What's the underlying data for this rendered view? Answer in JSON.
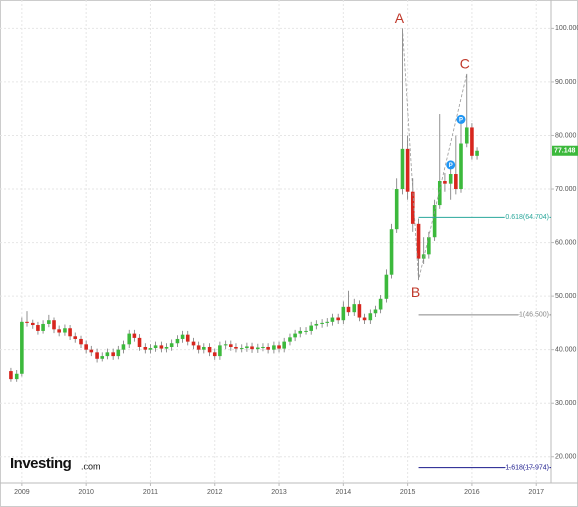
{
  "chart_data": {
    "type": "candlestick",
    "x": [
      2008.83,
      2008.92,
      2009.0,
      2009.08,
      2009.17,
      2009.25,
      2009.33,
      2009.42,
      2009.5,
      2009.58,
      2009.67,
      2009.75,
      2009.83,
      2009.92,
      2010.0,
      2010.08,
      2010.17,
      2010.25,
      2010.33,
      2010.42,
      2010.5,
      2010.58,
      2010.67,
      2010.75,
      2010.83,
      2010.92,
      2011.0,
      2011.08,
      2011.17,
      2011.25,
      2011.33,
      2011.42,
      2011.5,
      2011.58,
      2011.67,
      2011.75,
      2011.83,
      2011.92,
      2012.0,
      2012.08,
      2012.17,
      2012.25,
      2012.33,
      2012.42,
      2012.5,
      2012.58,
      2012.67,
      2012.75,
      2012.83,
      2012.92,
      2013.0,
      2013.08,
      2013.17,
      2013.25,
      2013.33,
      2013.42,
      2013.5,
      2013.58,
      2013.67,
      2013.75,
      2013.83,
      2013.92,
      2014.0,
      2014.08,
      2014.17,
      2014.25,
      2014.33,
      2014.42,
      2014.5,
      2014.58,
      2014.67,
      2014.75,
      2014.83,
      2014.92,
      2015.0,
      2015.08,
      2015.17,
      2015.25,
      2015.33,
      2015.42,
      2015.5,
      2015.58,
      2015.67,
      2015.75,
      2015.83,
      2015.92,
      2016.0,
      2016.08
    ],
    "open": [
      36.0,
      34.5,
      35.5,
      45.2,
      45.0,
      44.6,
      43.5,
      44.8,
      45.5,
      43.8,
      43.2,
      44.0,
      42.5,
      42.0,
      41.0,
      40.0,
      39.5,
      38.3,
      38.8,
      39.5,
      38.8,
      40.0,
      41.0,
      43.0,
      42.2,
      40.5,
      40.0,
      40.3,
      40.8,
      40.2,
      40.5,
      41.2,
      42.0,
      42.8,
      41.5,
      40.8,
      40.0,
      40.5,
      39.5,
      38.8,
      40.8,
      41.0,
      40.5,
      40.2,
      40.3,
      40.6,
      40.1,
      40.4,
      40.5,
      40.0,
      40.8,
      40.2,
      41.5,
      42.3,
      43.0,
      43.5,
      43.5,
      44.5,
      44.8,
      45.0,
      45.2,
      46.0,
      45.5,
      48.0,
      47.0,
      48.5,
      46.0,
      45.5,
      46.8,
      47.5,
      49.5,
      54.0,
      62.5,
      70.0,
      77.5,
      69.5,
      63.5,
      57.0,
      57.8,
      61.0,
      67.0,
      71.5,
      71.0,
      72.8,
      70.0,
      78.5,
      81.5,
      76.2
    ],
    "high": [
      36.6,
      36.2,
      46.0,
      47.2,
      45.6,
      45.2,
      45.5,
      46.5,
      46.0,
      44.5,
      44.7,
      44.6,
      43.2,
      42.6,
      41.7,
      40.7,
      40.2,
      39.5,
      40.2,
      40.2,
      40.7,
      41.7,
      43.7,
      43.7,
      42.9,
      41.2,
      41.0,
      41.5,
      41.5,
      41.2,
      41.9,
      42.7,
      43.5,
      43.5,
      42.2,
      41.5,
      41.2,
      41.2,
      40.2,
      41.5,
      41.7,
      41.7,
      41.2,
      41.0,
      41.3,
      41.3,
      41.1,
      41.2,
      41.2,
      41.5,
      41.5,
      42.2,
      43.0,
      43.7,
      44.2,
      44.2,
      45.2,
      45.5,
      45.7,
      45.9,
      46.7,
      46.7,
      49.0,
      51.0,
      49.5,
      49.2,
      46.7,
      47.5,
      48.2,
      50.2,
      55.0,
      63.5,
      72.0,
      100.0,
      80.0,
      72.0,
      64.5,
      61.0,
      62.0,
      68.0,
      84.0,
      73.0,
      74.5,
      80.0,
      83.0,
      91.5,
      82.3,
      77.8
    ],
    "low": [
      34.0,
      34.0,
      35.0,
      44.3,
      43.9,
      42.8,
      43.0,
      44.2,
      43.1,
      42.5,
      42.6,
      41.8,
      41.3,
      40.3,
      39.3,
      38.8,
      37.6,
      37.8,
      38.2,
      38.1,
      38.2,
      39.3,
      40.3,
      41.5,
      39.8,
      39.3,
      39.3,
      39.6,
      39.5,
      39.5,
      39.8,
      40.5,
      41.3,
      40.8,
      40.1,
      39.3,
      39.3,
      38.8,
      38.1,
      38.1,
      40.1,
      39.8,
      39.5,
      39.5,
      39.6,
      39.4,
      39.4,
      39.7,
      39.3,
      39.3,
      39.5,
      39.5,
      40.8,
      41.6,
      42.3,
      42.8,
      42.8,
      43.8,
      44.1,
      44.3,
      44.5,
      44.8,
      44.8,
      46.3,
      46.3,
      45.3,
      44.8,
      44.8,
      46.1,
      46.8,
      48.8,
      53.3,
      61.8,
      69.0,
      68.0,
      62.0,
      53.0,
      56.0,
      57.0,
      60.3,
      66.3,
      69.5,
      68.0,
      69.0,
      69.3,
      77.8,
      75.5,
      75.5
    ],
    "close": [
      34.5,
      35.5,
      45.2,
      45.0,
      44.6,
      43.5,
      44.8,
      45.5,
      43.8,
      43.2,
      44.0,
      42.5,
      42.0,
      41.0,
      40.0,
      39.5,
      38.3,
      38.8,
      39.5,
      38.8,
      40.0,
      41.0,
      43.0,
      42.2,
      40.5,
      40.0,
      40.3,
      40.8,
      40.2,
      40.5,
      41.2,
      42.0,
      42.8,
      41.5,
      40.8,
      40.0,
      40.5,
      39.5,
      38.8,
      40.8,
      41.0,
      40.5,
      40.2,
      40.3,
      40.6,
      40.1,
      40.4,
      40.5,
      40.0,
      40.8,
      40.2,
      41.5,
      42.3,
      43.0,
      43.5,
      43.5,
      44.5,
      44.8,
      45.0,
      45.2,
      46.0,
      45.5,
      48.0,
      47.0,
      48.5,
      46.0,
      45.5,
      46.8,
      47.5,
      49.5,
      54.0,
      62.5,
      70.0,
      77.5,
      69.5,
      63.5,
      57.0,
      57.8,
      61.0,
      67.0,
      71.5,
      71.0,
      72.8,
      70.0,
      78.5,
      81.5,
      76.2,
      77.148
    ],
    "up_color": "#3cb93c",
    "down_color": "#d7261e",
    "xlim": [
      2008.66,
      2017.23
    ],
    "ylim": [
      15.1,
      105.3
    ],
    "xticks": [
      2009,
      2010,
      2011,
      2012,
      2013,
      2014,
      2015,
      2016,
      2017
    ],
    "yticks": [
      {
        "value": 20,
        "label": "20.000"
      },
      {
        "value": 30,
        "label": "30.000"
      },
      {
        "value": 40,
        "label": "40.000"
      },
      {
        "value": 50,
        "label": "50.000"
      },
      {
        "value": 60,
        "label": "60.000"
      },
      {
        "value": 70,
        "label": "70.000"
      },
      {
        "value": 80,
        "label": "80.000"
      },
      {
        "value": 90,
        "label": "90.000"
      },
      {
        "value": 100,
        "label": "100.000"
      }
    ],
    "grid": true,
    "wave_labels": [
      "A",
      "B",
      "C"
    ],
    "event_icons": [
      "P",
      "P"
    ],
    "fib_levels": [
      {
        "value": 64.704,
        "label": "0.618(64.704)",
        "color": "#2aa79b"
      },
      {
        "value": 46.5,
        "label": "1(46.500)",
        "color": "#888888"
      },
      {
        "value": 17.974,
        "label": "1.618(17.974)",
        "color": "#1a1a8c"
      }
    ],
    "logo": {
      "name": "Investing",
      "suffix": ".com"
    }
  }
}
